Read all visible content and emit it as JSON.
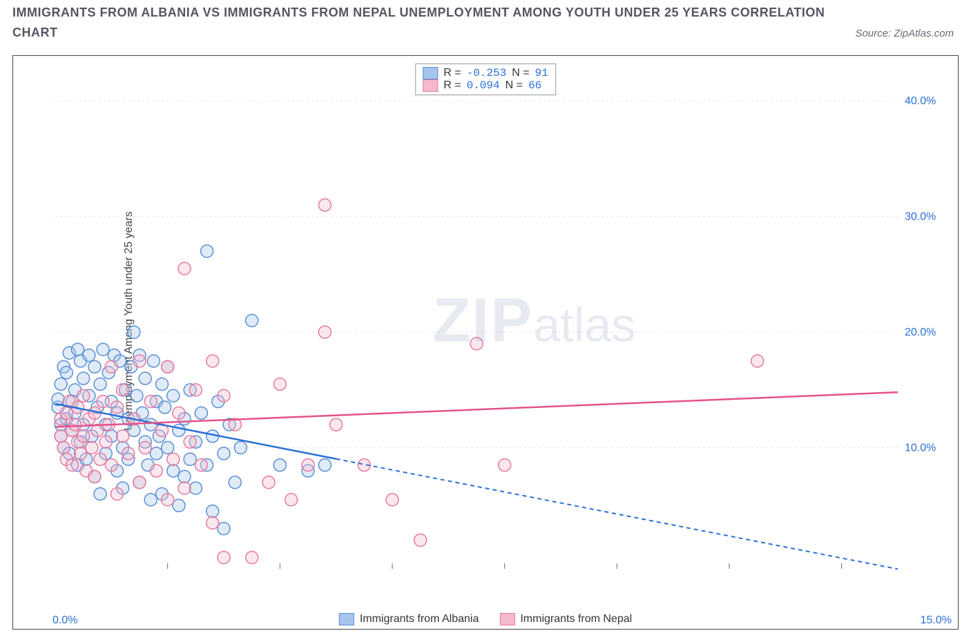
{
  "title_line1": "IMMIGRANTS FROM ALBANIA VS IMMIGRANTS FROM NEPAL UNEMPLOYMENT AMONG YOUTH UNDER 25 YEARS CORRELATION",
  "title_line2": "CHART",
  "source_label": "Source: ZipAtlas.com",
  "y_axis_label": "Unemployment Among Youth under 25 years",
  "watermark_zip": "ZIP",
  "watermark_atlas": "atlas",
  "x_origin_label": "0.0%",
  "x_max_label": "15.0%",
  "chart": {
    "type": "scatter",
    "background_color": "#ffffff",
    "grid_color": "#e4e4e8",
    "border_color": "#444444",
    "xlim": [
      0,
      15
    ],
    "ylim": [
      0,
      43
    ],
    "x_ticks": [
      2,
      4,
      6,
      8,
      10,
      12,
      14
    ],
    "y_ticks": [
      10,
      20,
      30,
      40
    ],
    "y_tick_labels": [
      "10.0%",
      "20.0%",
      "30.0%",
      "40.0%"
    ],
    "y_tick_color": "#2a6fd6",
    "x_tick_color": "#2a6fd6",
    "tick_fontsize": 16,
    "marker_radius": 9,
    "marker_stroke_width": 1.5,
    "marker_fill_opacity": 0.35,
    "trend_line_width": 2.5,
    "trend_dash": "6,5"
  },
  "series": [
    {
      "name": "Immigrants from Albania",
      "color_stroke": "#5a8fd6",
      "color_fill": "#a7c5ec",
      "trend_color": "#2a6fd6",
      "R": "-0.253",
      "N": "91",
      "trend": {
        "x1": 0,
        "y1": 13.8,
        "x2": 15,
        "y2": -0.5,
        "solid_until_x": 5.0
      },
      "points": [
        [
          0.05,
          13.5
        ],
        [
          0.05,
          14.2
        ],
        [
          0.1,
          12.0
        ],
        [
          0.1,
          15.5
        ],
        [
          0.1,
          11.0
        ],
        [
          0.15,
          17.0
        ],
        [
          0.15,
          10.0
        ],
        [
          0.2,
          16.5
        ],
        [
          0.2,
          12.5
        ],
        [
          0.25,
          18.2
        ],
        [
          0.25,
          9.5
        ],
        [
          0.3,
          14.0
        ],
        [
          0.3,
          11.5
        ],
        [
          0.35,
          13.0
        ],
        [
          0.35,
          15.0
        ],
        [
          0.4,
          18.5
        ],
        [
          0.4,
          8.5
        ],
        [
          0.45,
          17.5
        ],
        [
          0.45,
          10.5
        ],
        [
          0.5,
          16.0
        ],
        [
          0.5,
          12.0
        ],
        [
          0.55,
          9.0
        ],
        [
          0.6,
          18.0
        ],
        [
          0.6,
          14.5
        ],
        [
          0.65,
          11.0
        ],
        [
          0.7,
          17.0
        ],
        [
          0.7,
          7.5
        ],
        [
          0.75,
          13.5
        ],
        [
          0.8,
          15.5
        ],
        [
          0.8,
          6.0
        ],
        [
          0.85,
          18.5
        ],
        [
          0.9,
          12.0
        ],
        [
          0.9,
          9.5
        ],
        [
          0.95,
          16.5
        ],
        [
          1.0,
          11.0
        ],
        [
          1.0,
          14.0
        ],
        [
          1.05,
          18.0
        ],
        [
          1.1,
          8.0
        ],
        [
          1.1,
          13.0
        ],
        [
          1.15,
          17.5
        ],
        [
          1.2,
          10.0
        ],
        [
          1.2,
          6.5
        ],
        [
          1.25,
          15.0
        ],
        [
          1.3,
          12.5
        ],
        [
          1.3,
          9.0
        ],
        [
          1.35,
          17.0
        ],
        [
          1.4,
          20.0
        ],
        [
          1.4,
          11.5
        ],
        [
          1.45,
          14.5
        ],
        [
          1.5,
          18.0
        ],
        [
          1.5,
          7.0
        ],
        [
          1.55,
          13.0
        ],
        [
          1.6,
          10.5
        ],
        [
          1.6,
          16.0
        ],
        [
          1.65,
          8.5
        ],
        [
          1.7,
          12.0
        ],
        [
          1.7,
          5.5
        ],
        [
          1.75,
          17.5
        ],
        [
          1.8,
          14.0
        ],
        [
          1.8,
          9.5
        ],
        [
          1.85,
          11.0
        ],
        [
          1.9,
          15.5
        ],
        [
          1.9,
          6.0
        ],
        [
          1.95,
          13.5
        ],
        [
          2.0,
          10.0
        ],
        [
          2.0,
          17.0
        ],
        [
          2.1,
          8.0
        ],
        [
          2.1,
          14.5
        ],
        [
          2.2,
          11.5
        ],
        [
          2.2,
          5.0
        ],
        [
          2.3,
          12.5
        ],
        [
          2.3,
          7.5
        ],
        [
          2.4,
          15.0
        ],
        [
          2.4,
          9.0
        ],
        [
          2.5,
          10.5
        ],
        [
          2.5,
          6.5
        ],
        [
          2.6,
          13.0
        ],
        [
          2.7,
          27.0
        ],
        [
          2.7,
          8.5
        ],
        [
          2.8,
          11.0
        ],
        [
          2.8,
          4.5
        ],
        [
          2.9,
          14.0
        ],
        [
          3.0,
          9.5
        ],
        [
          3.0,
          3.0
        ],
        [
          3.1,
          12.0
        ],
        [
          3.2,
          7.0
        ],
        [
          3.3,
          10.0
        ],
        [
          3.5,
          21.0
        ],
        [
          4.0,
          8.5
        ],
        [
          4.5,
          8.0
        ],
        [
          4.8,
          8.5
        ]
      ]
    },
    {
      "name": "Immigrants from Nepal",
      "color_stroke": "#e67aa0",
      "color_fill": "#f4b9ce",
      "trend_color": "#e5518a",
      "R": "0.094",
      "N": "66",
      "trend": {
        "x1": 0,
        "y1": 11.8,
        "x2": 15,
        "y2": 14.8,
        "solid_until_x": 15
      },
      "points": [
        [
          0.1,
          11.0
        ],
        [
          0.1,
          12.5
        ],
        [
          0.15,
          10.0
        ],
        [
          0.2,
          13.0
        ],
        [
          0.2,
          9.0
        ],
        [
          0.25,
          14.0
        ],
        [
          0.3,
          11.5
        ],
        [
          0.3,
          8.5
        ],
        [
          0.35,
          12.0
        ],
        [
          0.4,
          10.5
        ],
        [
          0.4,
          13.5
        ],
        [
          0.45,
          9.5
        ],
        [
          0.5,
          11.0
        ],
        [
          0.5,
          14.5
        ],
        [
          0.55,
          8.0
        ],
        [
          0.6,
          12.5
        ],
        [
          0.65,
          10.0
        ],
        [
          0.7,
          13.0
        ],
        [
          0.7,
          7.5
        ],
        [
          0.75,
          11.5
        ],
        [
          0.8,
          9.0
        ],
        [
          0.85,
          14.0
        ],
        [
          0.9,
          10.5
        ],
        [
          0.95,
          12.0
        ],
        [
          1.0,
          17.0
        ],
        [
          1.0,
          8.5
        ],
        [
          1.1,
          13.5
        ],
        [
          1.1,
          6.0
        ],
        [
          1.2,
          11.0
        ],
        [
          1.2,
          15.0
        ],
        [
          1.3,
          9.5
        ],
        [
          1.4,
          12.5
        ],
        [
          1.5,
          17.5
        ],
        [
          1.5,
          7.0
        ],
        [
          1.6,
          10.0
        ],
        [
          1.7,
          14.0
        ],
        [
          1.8,
          8.0
        ],
        [
          1.9,
          11.5
        ],
        [
          2.0,
          17.0
        ],
        [
          2.0,
          5.5
        ],
        [
          2.1,
          9.0
        ],
        [
          2.2,
          13.0
        ],
        [
          2.3,
          25.5
        ],
        [
          2.3,
          6.5
        ],
        [
          2.4,
          10.5
        ],
        [
          2.5,
          15.0
        ],
        [
          2.6,
          8.5
        ],
        [
          2.8,
          17.5
        ],
        [
          2.8,
          3.5
        ],
        [
          3.0,
          14.5
        ],
        [
          3.0,
          0.5
        ],
        [
          3.2,
          12.0
        ],
        [
          3.5,
          0.5
        ],
        [
          3.8,
          7.0
        ],
        [
          4.0,
          15.5
        ],
        [
          4.2,
          5.5
        ],
        [
          4.5,
          8.5
        ],
        [
          4.8,
          20.0
        ],
        [
          4.8,
          31.0
        ],
        [
          5.0,
          12.0
        ],
        [
          5.5,
          8.5
        ],
        [
          6.0,
          5.5
        ],
        [
          6.5,
          2.0
        ],
        [
          7.5,
          19.0
        ],
        [
          8.0,
          8.5
        ],
        [
          12.5,
          17.5
        ]
      ]
    }
  ],
  "legend_top": {
    "R_label": "R =",
    "N_label": "N ="
  },
  "legend_bottom": {
    "items": [
      "Immigrants from Albania",
      "Immigrants from Nepal"
    ]
  }
}
